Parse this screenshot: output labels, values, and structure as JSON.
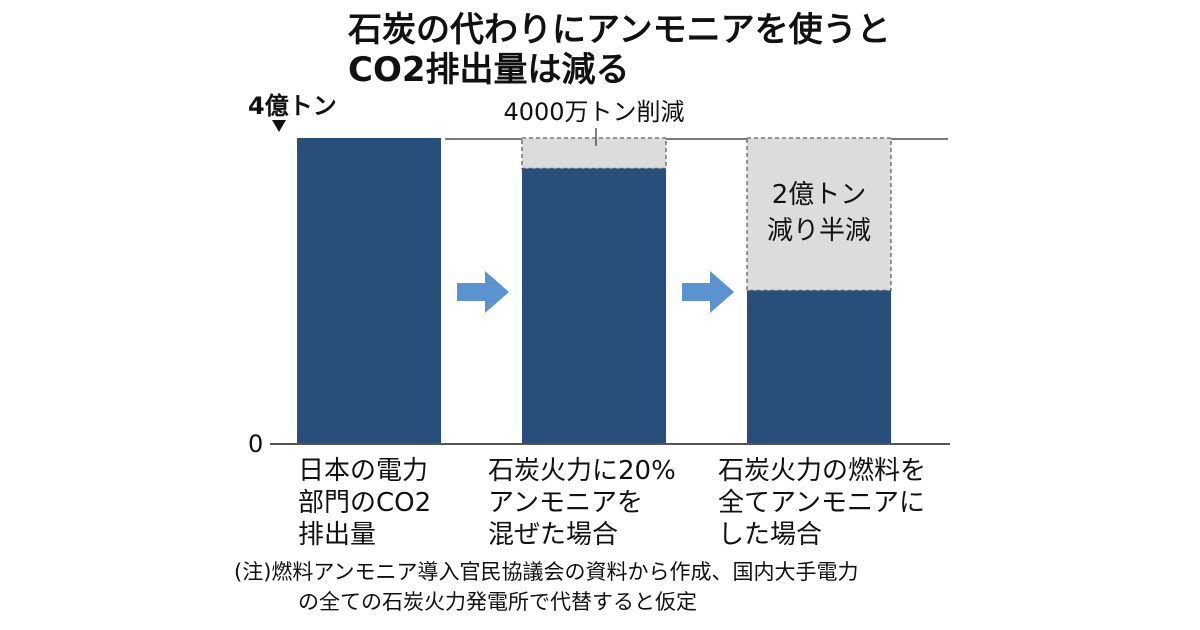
{
  "title_line1": "石炭の代わりにアンモニアを使うと",
  "title_line2": "CO2排出量は減る",
  "chart_data": {
    "type": "bar",
    "unit_label": "4億トン",
    "zero_label": "0",
    "ylim": [
      0,
      4
    ],
    "categories": [
      [
        "日本の電力",
        "部門のCO2",
        "排出量"
      ],
      [
        "石炭火力に20%",
        "アンモニアを",
        "混ぜた場合"
      ],
      [
        "石炭火力の燃料を",
        "全てアンモニアに",
        "した場合"
      ]
    ],
    "values": [
      4.0,
      3.6,
      2.0
    ],
    "reduction": [
      {
        "amount": 0,
        "label": ""
      },
      {
        "amount": 0.4,
        "label": "4000万トン削減"
      },
      {
        "amount": 2.0,
        "label_lines": [
          "2億トン",
          "減り半減"
        ]
      }
    ],
    "colors": {
      "bar": "#274f79",
      "reduction": "#dcdcdc",
      "arrow": "#5b93d1"
    }
  },
  "note": {
    "line1": "(注)燃料アンモニア導入官民協議会の資料から作成、国内大手電力",
    "line2": "の全ての石炭火力発電所で代替すると仮定"
  }
}
